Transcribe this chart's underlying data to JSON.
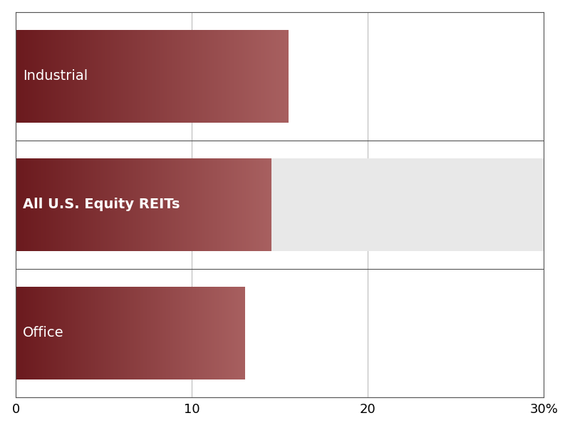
{
  "categories": [
    "Office",
    "All U.S. Equity REITs",
    "Industrial"
  ],
  "values": [
    13.0,
    14.5,
    15.5
  ],
  "bar_color_dark": "#6B1A1E",
  "bar_color_light": "#A86060",
  "gray_extension_color": "#E8E8E8",
  "gray_extension_max": 30,
  "highlight_bar": "All U.S. Equity REITs",
  "label_fontsize": 14,
  "label_bold_bar": "All U.S. Equity REITs",
  "xlim": [
    0,
    30
  ],
  "xticks": [
    0,
    10,
    20,
    30
  ],
  "xticklabels": [
    "0",
    "10",
    "20",
    "30%"
  ],
  "background_color": "#FFFFFF",
  "bar_height": 0.72,
  "text_color": "#FFFFFF",
  "axis_color": "#555555",
  "grid_color": "#BBBBBB",
  "tick_fontsize": 13
}
